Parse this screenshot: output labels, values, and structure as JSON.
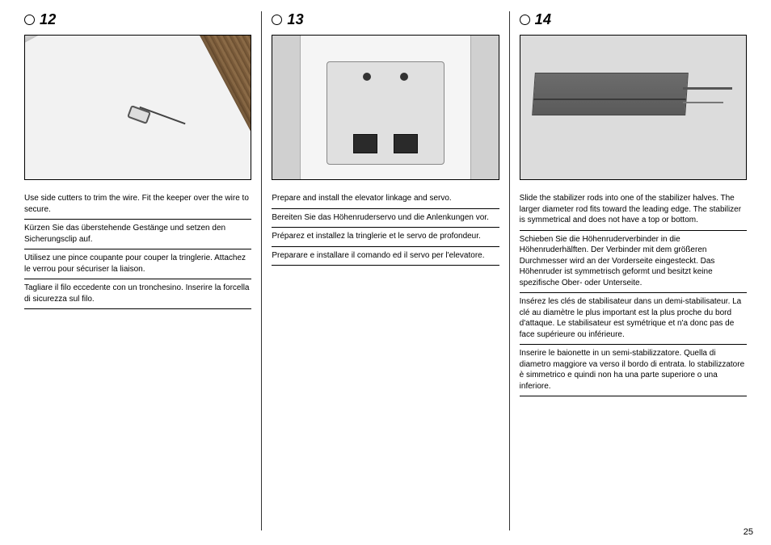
{
  "page_number": "25",
  "columns": [
    {
      "number": "12",
      "captions": [
        "Use side cutters to trim the wire. Fit the keeper over the wire to secure.",
        "Kürzen Sie das überstehende Gestänge und setzen den Sicherungsclip auf.",
        "Utilisez une pince coupante pour couper la tringlerie. Attachez le verrou pour sécuriser la liaison.",
        "Tagliare il filo eccedente con un tronchesino. Inserire la forcella di sicurezza sul filo."
      ]
    },
    {
      "number": "13",
      "captions": [
        "Prepare and install the elevator linkage and servo.",
        "Bereiten Sie das Höhenruderservo und die Anlenkungen vor.",
        "Préparez et installez la tringlerie et le servo de profondeur.",
        "Preparare e installare il comando ed il servo per l'elevatore."
      ]
    },
    {
      "number": "14",
      "captions": [
        "Slide the stabilizer rods into one of the stabilizer halves. The larger diameter rod fits toward the leading edge. The stabilizer is symmetrical and does not have a top or bottom.",
        "Schieben Sie die Höhenruderverbinder in die Höhenruderhälften. Der Verbinder mit dem größeren Durchmesser wird an der Vorderseite eingesteckt. Das Höhenruder ist symmetrisch geformt und besitzt keine spezifische Ober- oder Unterseite.",
        "Insérez les clés de stabilisateur dans un demi-stabilisateur. La clé au diamètre le plus important est la plus proche du bord d'attaque. Le stabilisateur est symétrique et n'a donc pas de face supérieure ou inférieure.",
        "Inserire le baionette in un semi-stabilizzatore. Quella di diametro maggiore va verso il bordo di entrata. lo stabilizzatore è simmetrico e quindi non ha una parte superiore o una inferiore."
      ]
    }
  ]
}
